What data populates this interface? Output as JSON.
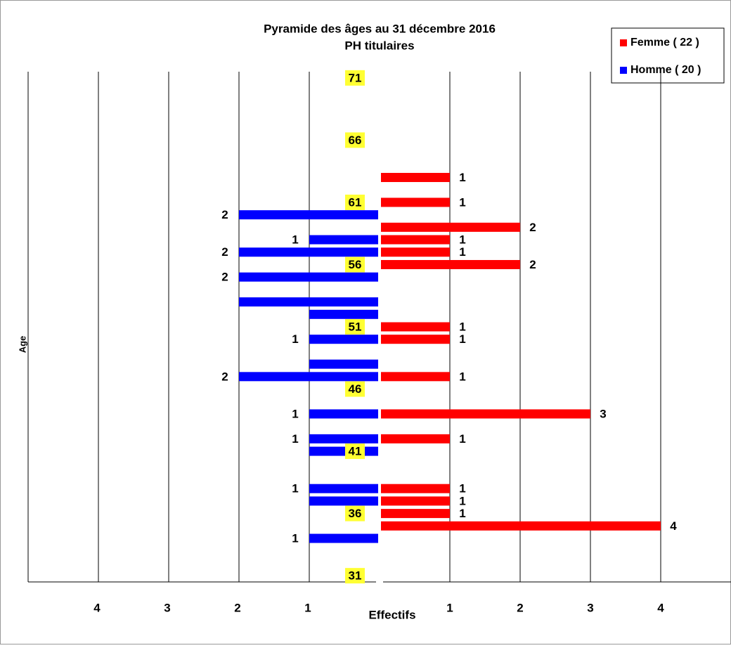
{
  "chart_data": {
    "type": "pyramid",
    "title": "Pyramide des âges au 31 décembre 2016",
    "subtitle": "PH titulaires",
    "x_label": "Effectifs",
    "y_label": "Age",
    "xlim": [
      0,
      5
    ],
    "xticks": [
      1,
      2,
      3,
      4
    ],
    "ylim": [
      30.5,
      71.5
    ],
    "yticks": [
      31,
      36,
      41,
      46,
      51,
      56,
      61,
      66,
      71
    ],
    "grid": true,
    "legend": "top-right",
    "series": [
      {
        "name": "Femme ( 22 )",
        "color": "#ff0000",
        "side": "right",
        "x": [
          63,
          61,
          59,
          58,
          57,
          56,
          51,
          50,
          47,
          44,
          42,
          38,
          37,
          36,
          35
        ],
        "values": [
          1,
          1,
          2,
          1,
          1,
          2,
          1,
          1,
          1,
          3,
          1,
          1,
          1,
          1,
          4
        ]
      },
      {
        "name": "Homme ( 20 )",
        "color": "#0000ff",
        "side": "left",
        "x": [
          60,
          58,
          57,
          55,
          53,
          52,
          50,
          48,
          47,
          44,
          42,
          41,
          38,
          37,
          34
        ],
        "values": [
          2,
          1,
          2,
          2,
          2,
          1,
          1,
          1,
          2,
          1,
          1,
          1,
          1,
          1,
          1
        ],
        "value_labels": [
          "2",
          "1",
          "2",
          "2",
          null,
          null,
          "1",
          null,
          "2",
          "1",
          "1",
          null,
          "1",
          null,
          "1"
        ]
      }
    ]
  }
}
